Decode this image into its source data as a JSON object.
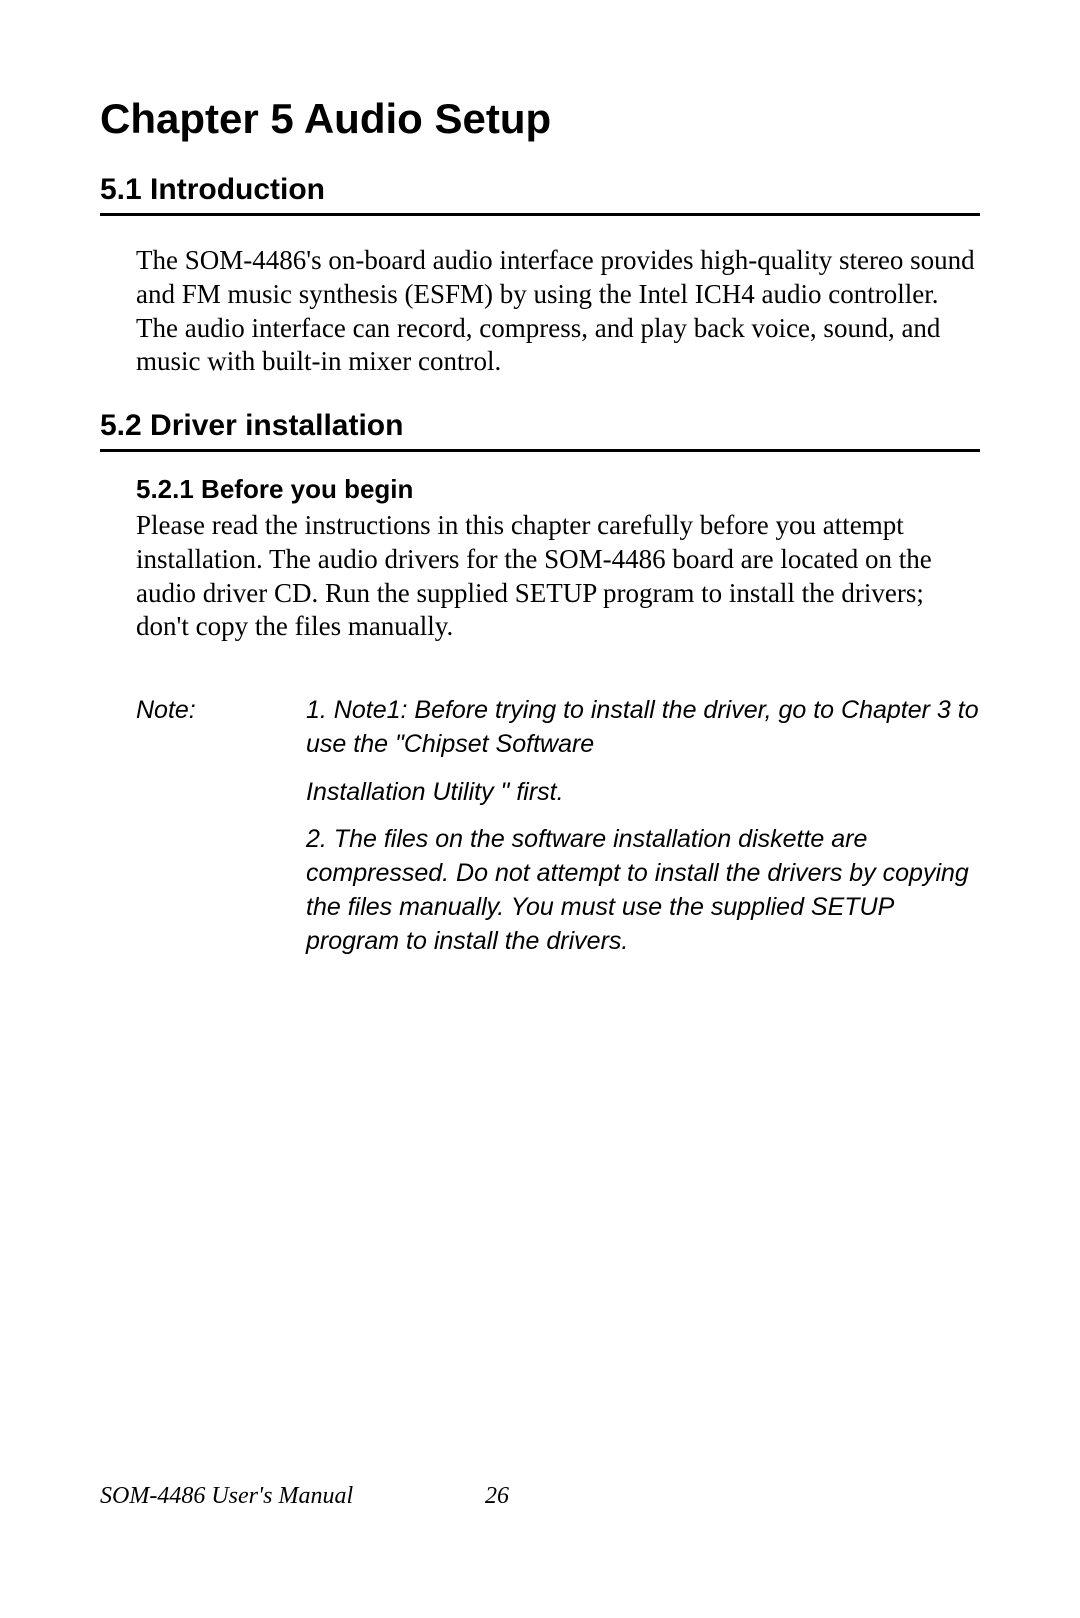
{
  "chapter": {
    "title": "Chapter 5  Audio Setup"
  },
  "sections": {
    "s1": {
      "heading": "5.1  Introduction",
      "body": "The SOM-4486's on-board audio interface provides high-quality stereo sound and FM music synthesis (ESFM) by using the Intel ICH4 audio controller. The audio interface can record, compress, and play back voice, sound, and music with built-in mixer control."
    },
    "s2": {
      "heading": "5.2  Driver installation",
      "sub1": {
        "heading": "5.2.1 Before you begin",
        "body": "Please read the instructions in this chapter carefully before you attempt installation. The audio drivers for the SOM-4486 board are located on the audio driver CD. Run the supplied SETUP program to install the drivers; don't copy the files manually."
      }
    }
  },
  "note": {
    "label": "Note:",
    "item1_line1": "1. Note1: Before trying to install the driver, go to Chapter 3 to use the \"Chipset Software",
    "item1_line2": "Installation Utility \" first.",
    "item2": "2. The files on the software installation diskette are compressed. Do not attempt to install the drivers by copying the files manually. You must use the supplied SETUP program to install the drivers."
  },
  "footer": {
    "title": "SOM-4486 User's Manual",
    "page": "26"
  }
}
